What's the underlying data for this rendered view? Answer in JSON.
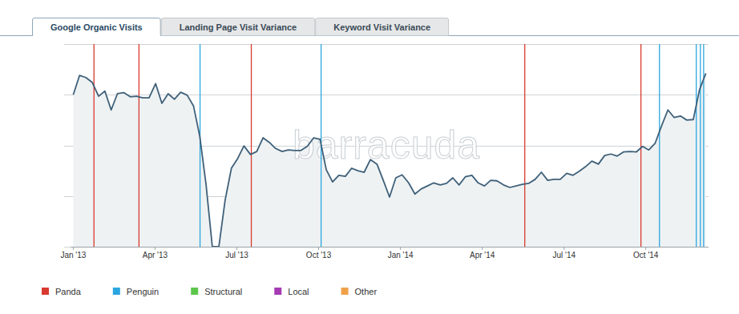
{
  "chart_data": {
    "type": "area",
    "tabs": [
      "Google Organic Visits",
      "Landing Page Visit Variance",
      "Keyword Visit Variance"
    ],
    "watermark": "barracuda",
    "x": [
      0,
      0.23,
      0.46,
      0.7,
      0.93,
      1.16,
      1.39,
      1.62,
      1.86,
      2.09,
      2.32,
      2.55,
      2.78,
      3.02,
      3.25,
      3.48,
      3.71,
      3.94,
      4.18,
      4.41,
      4.64,
      4.87,
      5.1,
      5.34,
      5.57,
      5.8,
      6.03,
      6.26,
      6.5,
      6.73,
      6.96,
      7.19,
      7.42,
      7.66,
      7.89,
      8.12,
      8.35,
      8.58,
      8.82,
      9.05,
      9.28,
      9.51,
      9.74,
      9.98,
      10.21,
      10.44,
      10.67,
      10.9,
      11.14,
      11.37,
      11.6,
      11.83,
      12.06,
      12.3,
      12.53,
      12.76,
      12.99,
      13.22,
      13.46,
      13.69,
      13.92,
      14.15,
      14.38,
      14.62,
      14.85,
      15.08,
      15.31,
      15.54,
      15.78,
      16.01,
      16.24,
      16.47,
      16.7,
      16.94,
      17.17,
      17.4,
      17.63,
      17.86,
      18.1,
      18.33,
      18.56,
      18.79,
      19.02,
      19.26,
      19.49,
      19.72,
      19.95,
      20.18,
      20.42,
      20.65,
      20.88,
      21.11,
      21.34,
      21.58,
      21.81,
      22.04,
      22.27,
      22.5,
      22.74,
      22.97,
      23.2
    ],
    "series": [
      {
        "color": "#3f6079",
        "values": [
          3.0,
          3.38,
          3.34,
          3.24,
          2.97,
          3.07,
          2.7,
          3.02,
          3.04,
          2.96,
          2.97,
          2.94,
          2.94,
          3.22,
          2.83,
          3.02,
          2.91,
          3.05,
          2.99,
          2.78,
          2.18,
          1.23,
          0,
          0,
          0.92,
          1.55,
          1.74,
          1.99,
          1.82,
          1.88,
          2.15,
          2.06,
          1.94,
          1.88,
          1.91,
          1.9,
          1.9,
          1.98,
          2.15,
          2.12,
          1.52,
          1.28,
          1.41,
          1.39,
          1.55,
          1.5,
          1.47,
          1.72,
          1.63,
          1.31,
          0.98,
          1.36,
          1.42,
          1.26,
          1.04,
          1.14,
          1.2,
          1.26,
          1.22,
          1.25,
          1.36,
          1.22,
          1.38,
          1.41,
          1.26,
          1.2,
          1.31,
          1.3,
          1.22,
          1.17,
          1.2,
          1.23,
          1.25,
          1.33,
          1.47,
          1.31,
          1.33,
          1.33,
          1.45,
          1.41,
          1.49,
          1.58,
          1.69,
          1.63,
          1.8,
          1.83,
          1.79,
          1.87,
          1.88,
          1.87,
          1.98,
          1.91,
          2.04,
          2.39,
          2.7,
          2.55,
          2.58,
          2.5,
          2.51,
          3.1,
          3.42
        ]
      }
    ],
    "xlim": [
      -0.1,
      23.3
    ],
    "xticks": [
      {
        "value": 0,
        "label": "Jan '13"
      },
      {
        "value": 3,
        "label": "Apr '13"
      },
      {
        "value": 6,
        "label": "Jul '13"
      },
      {
        "value": 9,
        "label": "Oct '13"
      },
      {
        "value": 12,
        "label": "Jan '14"
      },
      {
        "value": 15,
        "label": "Apr '14"
      },
      {
        "value": 18,
        "label": "Jul '14"
      },
      {
        "value": 21,
        "label": "Oct '14"
      }
    ],
    "ylim": [
      0,
      4
    ],
    "yticks": [
      0,
      1,
      2,
      3,
      4
    ],
    "tick_labels": "x",
    "grid": true,
    "legend": "bottom",
    "legend_items": [
      {
        "name": "Panda",
        "color": "#d93a2f"
      },
      {
        "name": "Penguin",
        "color": "#2ba6e0"
      },
      {
        "name": "Structural",
        "color": "#5cc64b"
      },
      {
        "name": "Local",
        "color": "#a53bb3"
      },
      {
        "name": "Other",
        "color": "#efa14a"
      }
    ],
    "updates": [
      {
        "name": "Panda",
        "x": 0.76
      },
      {
        "name": "Panda",
        "x": 2.41
      },
      {
        "name": "Penguin",
        "x": 4.65
      },
      {
        "name": "Panda",
        "x": 6.53
      },
      {
        "name": "Penguin",
        "x": 9.09
      },
      {
        "name": "Panda",
        "x": 16.56
      },
      {
        "name": "Panda",
        "x": 20.82
      },
      {
        "name": "Penguin",
        "x": 21.5
      },
      {
        "name": "Penguin",
        "x": 22.85
      },
      {
        "name": "Penguin",
        "x": 23.0
      },
      {
        "name": "Penguin",
        "x": 23.12
      }
    ]
  }
}
